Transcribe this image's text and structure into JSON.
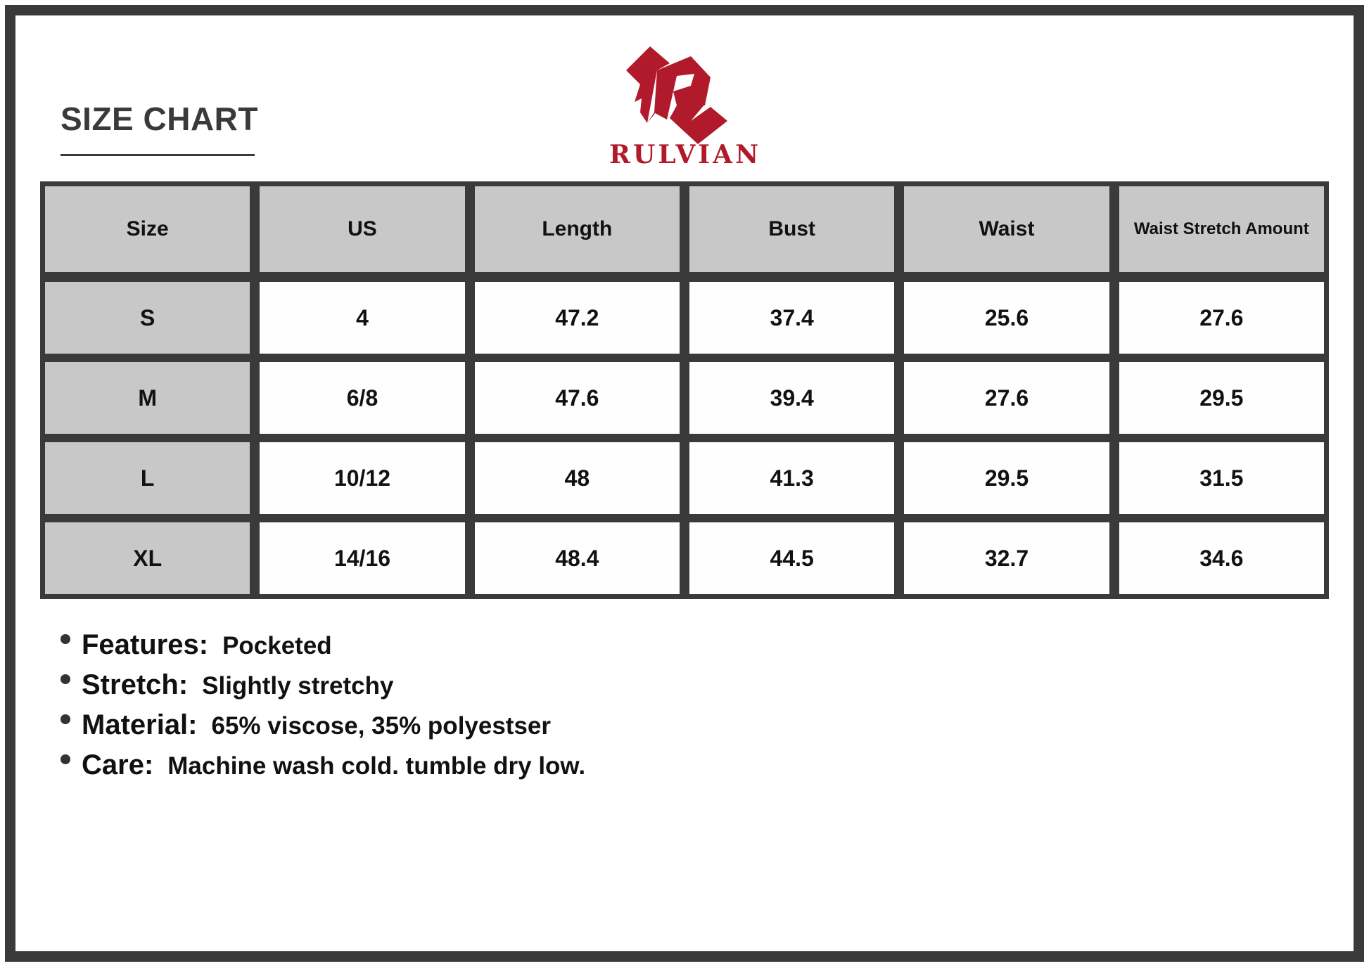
{
  "title": "SIZE CHART",
  "brand": {
    "name": "RULVIAN",
    "color": "#b01a2a"
  },
  "table": {
    "headers": [
      "Size",
      "US",
      "Length",
      "Bust",
      "Waist",
      "Waist Stretch Amount"
    ],
    "rows": [
      [
        "S",
        "4",
        "47.2",
        "37.4",
        "25.6",
        "27.6"
      ],
      [
        "M",
        "6/8",
        "47.6",
        "39.4",
        "27.6",
        "29.5"
      ],
      [
        "L",
        "10/12",
        "48",
        "41.3",
        "29.5",
        "31.5"
      ],
      [
        "XL",
        "14/16",
        "48.4",
        "44.5",
        "32.7",
        "34.6"
      ]
    ]
  },
  "notes": [
    {
      "label": "Features:",
      "value": "Pocketed"
    },
    {
      "label": "Stretch:",
      "value": "Slightly stretchy"
    },
    {
      "label": "Material:",
      "value": "65% viscose, 35% polyestser"
    },
    {
      "label": "Care:",
      "value": "Machine wash cold. tumble dry low."
    }
  ]
}
